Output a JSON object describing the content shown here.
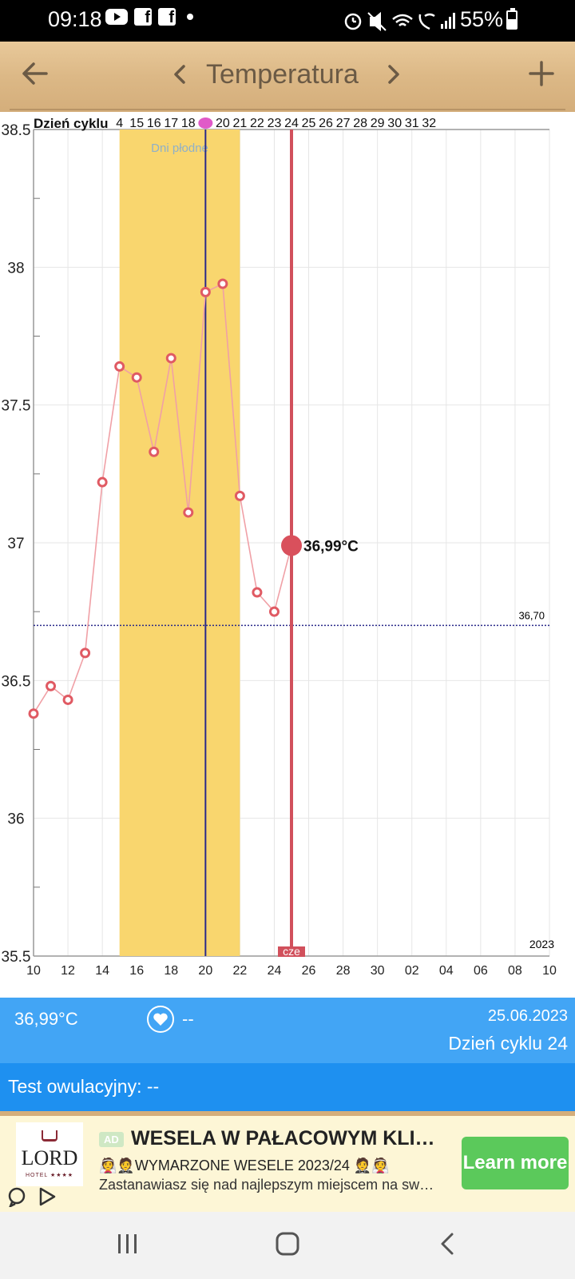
{
  "status_bar": {
    "time": "09:18",
    "battery": "55%",
    "app_icons": [
      "youtube-icon",
      "facebook-icon",
      "facebook-icon"
    ],
    "right_icons": [
      "alarm-icon",
      "mute-icon",
      "wifi-icon",
      "wifi-call-icon",
      "signal-icon",
      "battery-icon"
    ]
  },
  "header": {
    "title": "Temperatura",
    "back_icon": "arrow-left-icon",
    "prev_icon": "chevron-left-icon",
    "next_icon": "chevron-right-icon",
    "add_icon": "plus-icon"
  },
  "colors": {
    "fertile_band": "#f9d66e",
    "selected_line": "#d1505c",
    "ovulation_line": "#2a2a8a",
    "point_stroke": "#e05a63",
    "line": "#f0a0a6",
    "info_bg": "#42a5f5",
    "ovu_bg": "#1e90f0",
    "cta_bg": "#5bc95b"
  },
  "chart_data": {
    "type": "line",
    "ylim": [
      35.5,
      38.5
    ],
    "y_ticks": [
      "35.5",
      "36",
      "36.5",
      "37",
      "37.5",
      "38",
      "38.5"
    ],
    "cycle_label": "Dzień cyklu",
    "cycle_days": [
      "4",
      "15",
      "16",
      "17",
      "18",
      "19",
      "20",
      "21",
      "22",
      "23",
      "24",
      "25",
      "26",
      "27",
      "28",
      "29",
      "30",
      "31",
      "32"
    ],
    "ovulation_day_marker": "19",
    "x_dates": [
      "10",
      "12",
      "14",
      "16",
      "18",
      "20",
      "22",
      "24",
      "26",
      "28",
      "30",
      "02",
      "04",
      "06",
      "08",
      "10"
    ],
    "x_range": [
      "2023-06-10",
      "2023-07-10"
    ],
    "year": "2023",
    "fertile_label": "Dni płodne",
    "fertile_range": [
      "2023-06-15",
      "2023-06-22"
    ],
    "ovulation_date": "2023-06-20",
    "coverline": 36.7,
    "coverline_label": "36,70",
    "selected_date": "2023-06-25",
    "selected_label": "36,99°C",
    "selected_weekday": "cze",
    "series": [
      {
        "points": [
          [
            "2023-06-10",
            36.38
          ],
          [
            "2023-06-11",
            36.48
          ],
          [
            "2023-06-12",
            36.43
          ],
          [
            "2023-06-13",
            36.6
          ],
          [
            "2023-06-14",
            37.22
          ],
          [
            "2023-06-15",
            37.64
          ],
          [
            "2023-06-16",
            37.6
          ],
          [
            "2023-06-17",
            37.33
          ],
          [
            "2023-06-18",
            37.67
          ],
          [
            "2023-06-19",
            37.11
          ],
          [
            "2023-06-20",
            37.91
          ],
          [
            "2023-06-21",
            37.94
          ],
          [
            "2023-06-22",
            37.17
          ],
          [
            "2023-06-23",
            36.82
          ],
          [
            "2023-06-24",
            36.75
          ],
          [
            "2023-06-25",
            36.99
          ]
        ]
      }
    ]
  },
  "info": {
    "temp": "36,99°C",
    "heart_value": "--",
    "date": "25.06.2023",
    "cycle_day": "Dzień cyklu 24"
  },
  "ovulation_test": {
    "label": "Test owulacyjny: --"
  },
  "ad": {
    "badge": "AD",
    "logo_text": "LORD",
    "logo_sub": "HOTEL ★★★★",
    "title": "WESELA W PAŁACOWYM KLIM…",
    "line1": "👰🤵WYMARZONE WESELE 2023/24 🤵👰",
    "line2": "Zastanawiasz się nad najlepszym miejscem na sw…",
    "cta": "Learn more"
  },
  "navbar": {
    "recent_icon": "recent-apps-icon",
    "home_icon": "home-icon",
    "back_icon": "back-icon"
  }
}
